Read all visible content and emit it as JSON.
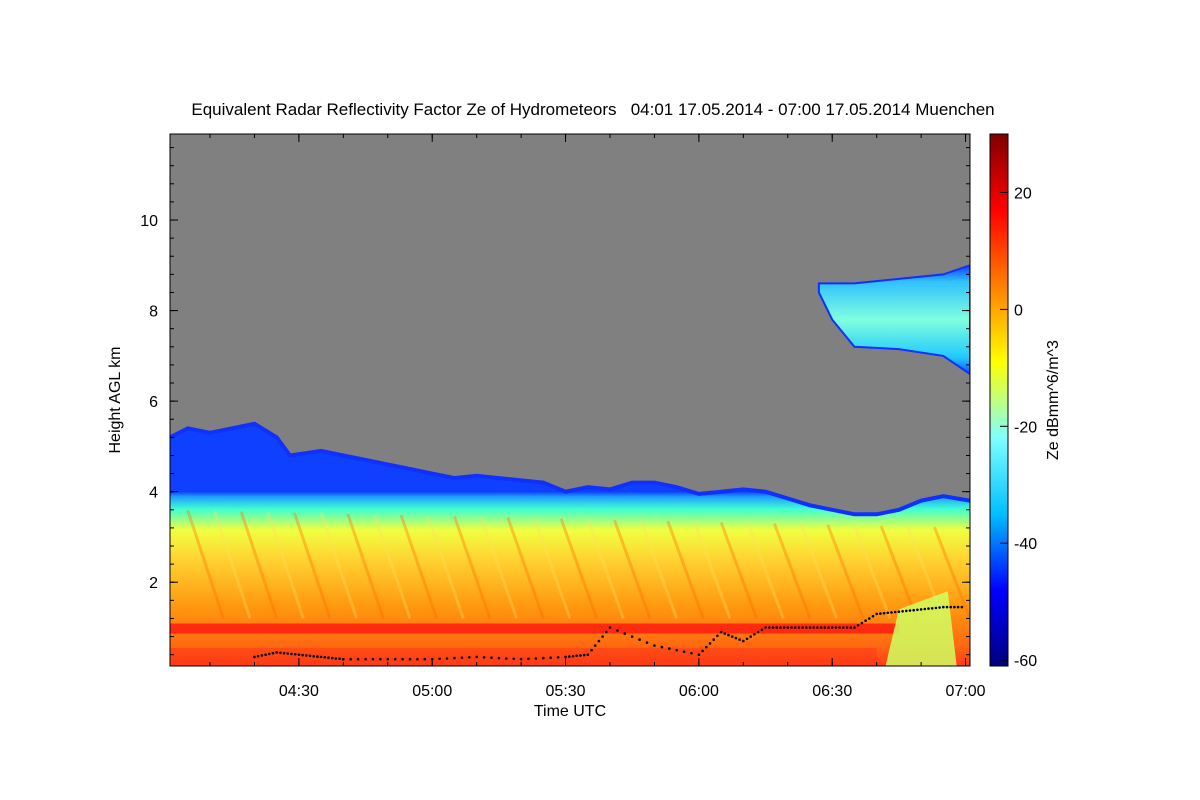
{
  "chart_data": {
    "type": "heatmap",
    "title": "Equivalent Radar Reflectivity Factor Ze of Hydrometeors   04:01 17.05.2014 - 07:00 17.05.2014 Muenchen",
    "xlabel": "Time UTC",
    "ylabel": "Height AGL km",
    "colorbar_label": "Ze dBmm^6/m^3",
    "x_ticks": [
      "04:30",
      "05:00",
      "05:30",
      "06:00",
      "06:30",
      "07:00"
    ],
    "x_tick_minutes": [
      30,
      60,
      90,
      120,
      150,
      180
    ],
    "xlim_minutes": [
      1,
      181
    ],
    "y_ticks": [
      2,
      4,
      6,
      8,
      10
    ],
    "ylim_km": [
      0.15,
      11.9
    ],
    "colorbar_ticks": [
      20,
      0,
      -20,
      -40,
      -60
    ],
    "colorbar_range": [
      -61,
      30
    ],
    "colormap": [
      "#00007f",
      "#0000ff",
      "#00bfff",
      "#7fffff",
      "#ffff00",
      "#ff7f00",
      "#ff0000",
      "#7f0000"
    ],
    "no_signal_color": "#808080",
    "bright_band_km": 1.0,
    "lower_cloud_top_km": [
      [
        1,
        5.2
      ],
      [
        5,
        5.4
      ],
      [
        10,
        5.3
      ],
      [
        15,
        5.4
      ],
      [
        20,
        5.5
      ],
      [
        25,
        5.2
      ],
      [
        28,
        4.8
      ],
      [
        35,
        4.9
      ],
      [
        40,
        4.8
      ],
      [
        45,
        4.7
      ],
      [
        50,
        4.6
      ],
      [
        55,
        4.5
      ],
      [
        60,
        4.4
      ],
      [
        65,
        4.3
      ],
      [
        70,
        4.35
      ],
      [
        75,
        4.3
      ],
      [
        80,
        4.25
      ],
      [
        85,
        4.2
      ],
      [
        90,
        4.0
      ],
      [
        95,
        4.1
      ],
      [
        100,
        4.05
      ],
      [
        105,
        4.2
      ],
      [
        110,
        4.2
      ],
      [
        115,
        4.1
      ],
      [
        120,
        3.95
      ],
      [
        125,
        4.0
      ],
      [
        130,
        4.05
      ],
      [
        135,
        4.0
      ],
      [
        140,
        3.85
      ],
      [
        145,
        3.7
      ],
      [
        150,
        3.6
      ],
      [
        155,
        3.5
      ],
      [
        160,
        3.5
      ],
      [
        165,
        3.6
      ],
      [
        170,
        3.8
      ],
      [
        175,
        3.9
      ],
      [
        181,
        3.8
      ]
    ],
    "upper_cloud_km": {
      "minutes": [
        145,
        181
      ],
      "top": [
        [
          147,
          8.6
        ],
        [
          155,
          8.6
        ],
        [
          165,
          8.7
        ],
        [
          175,
          8.8
        ],
        [
          181,
          9.0
        ]
      ],
      "base": [
        [
          147,
          8.4
        ],
        [
          150,
          7.8
        ],
        [
          155,
          7.2
        ],
        [
          165,
          7.15
        ],
        [
          175,
          7.0
        ],
        [
          181,
          6.6
        ]
      ]
    },
    "ceilometer_cloud_base_km": [
      [
        20,
        0.35
      ],
      [
        25,
        0.45
      ],
      [
        30,
        0.4
      ],
      [
        35,
        0.35
      ],
      [
        40,
        0.3
      ],
      [
        50,
        0.3
      ],
      [
        60,
        0.3
      ],
      [
        70,
        0.35
      ],
      [
        80,
        0.3
      ],
      [
        90,
        0.35
      ],
      [
        95,
        0.4
      ],
      [
        100,
        1.0
      ],
      [
        110,
        0.6
      ],
      [
        120,
        0.4
      ],
      [
        125,
        0.9
      ],
      [
        130,
        0.7
      ],
      [
        135,
        1.0
      ],
      [
        140,
        1.0
      ],
      [
        145,
        1.0
      ],
      [
        150,
        1.0
      ],
      [
        155,
        1.0
      ],
      [
        160,
        1.3
      ],
      [
        165,
        1.35
      ],
      [
        170,
        1.4
      ],
      [
        175,
        1.45
      ],
      [
        180,
        1.45
      ]
    ]
  }
}
